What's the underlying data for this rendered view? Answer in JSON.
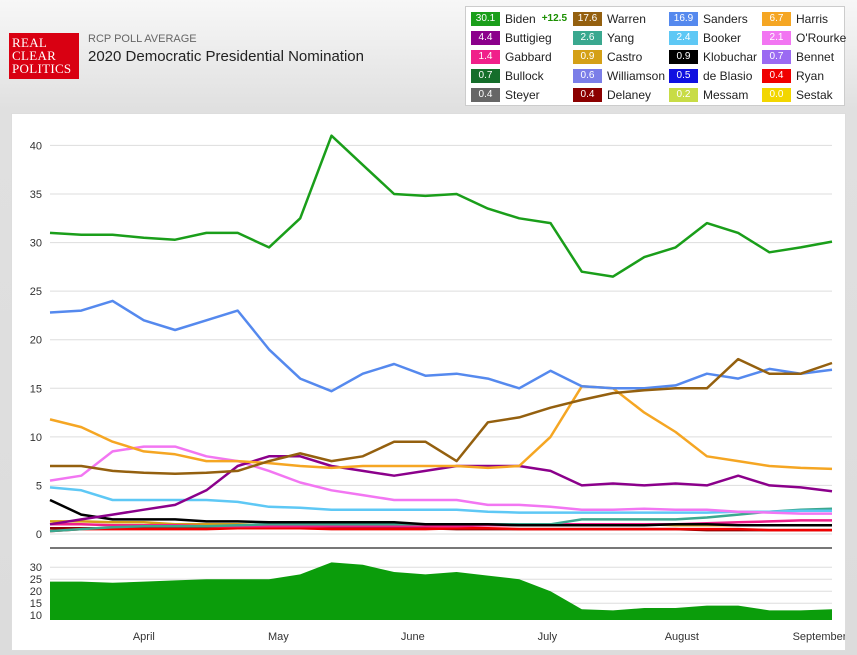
{
  "header": {
    "logo_lines": [
      "REAL",
      "CLEAR",
      "POLITICS"
    ],
    "supertitle": "RCP POLL AVERAGE",
    "title": "2020 Democratic Presidential Nomination"
  },
  "legend": [
    {
      "name": "Biden",
      "value": "30.1",
      "color": "#1a9e1a",
      "spread": "+12.5"
    },
    {
      "name": "Warren",
      "value": "17.6",
      "color": "#94600f"
    },
    {
      "name": "Sanders",
      "value": "16.9",
      "color": "#5589ee"
    },
    {
      "name": "Harris",
      "value": "6.7",
      "color": "#f5a623"
    },
    {
      "name": "Buttigieg",
      "value": "4.4",
      "color": "#8b008b"
    },
    {
      "name": "Yang",
      "value": "2.6",
      "color": "#3aa88f"
    },
    {
      "name": "Booker",
      "value": "2.4",
      "color": "#5ec8f5"
    },
    {
      "name": "O'Rourke",
      "value": "2.1",
      "color": "#f276f2"
    },
    {
      "name": "Gabbard",
      "value": "1.4",
      "color": "#f0208a"
    },
    {
      "name": "Castro",
      "value": "0.9",
      "color": "#d4a017"
    },
    {
      "name": "Klobuchar",
      "value": "0.9",
      "color": "#000000"
    },
    {
      "name": "Bennet",
      "value": "0.7",
      "color": "#9b6af2"
    },
    {
      "name": "Bullock",
      "value": "0.7",
      "color": "#156e2b"
    },
    {
      "name": "Williamson",
      "value": "0.6",
      "color": "#7b7ee8"
    },
    {
      "name": "de Blasio",
      "value": "0.5",
      "color": "#1010e0"
    },
    {
      "name": "Ryan",
      "value": "0.4",
      "color": "#f00000"
    },
    {
      "name": "Steyer",
      "value": "0.4",
      "color": "#666666"
    },
    {
      "name": "Delaney",
      "value": "0.4",
      "color": "#8b0000"
    },
    {
      "name": "Messam",
      "value": "0.2",
      "color": "#c8dc46"
    },
    {
      "name": "Sestak",
      "value": "0.0",
      "color": "#f2d600"
    }
  ],
  "chart_data": [
    {
      "type": "line",
      "x": [
        "Mar 15",
        "Mar 22",
        "Mar 29",
        "Apr 5",
        "Apr 12",
        "Apr 19",
        "Apr 26",
        "May 3",
        "May 10",
        "May 17",
        "May 24",
        "May 31",
        "Jun 7",
        "Jun 14",
        "Jun 21",
        "Jun 28",
        "Jul 5",
        "Jul 12",
        "Jul 19",
        "Jul 26",
        "Aug 2",
        "Aug 9",
        "Aug 16",
        "Aug 23",
        "Aug 30",
        "Sep 6"
      ],
      "xticks": [
        "April",
        "May",
        "June",
        "July",
        "August",
        "September"
      ],
      "xtick_positions": [
        3,
        7.3,
        11.6,
        15.9,
        20.2,
        24.6
      ],
      "ylim": [
        0,
        42
      ],
      "yticks": [
        0,
        5,
        10,
        15,
        20,
        25,
        30,
        35,
        40
      ],
      "grid": true,
      "series": [
        {
          "name": "Biden",
          "color": "#1a9e1a",
          "values": [
            31,
            30.8,
            30.8,
            30.5,
            30.3,
            31,
            31,
            29.5,
            32.5,
            41,
            38,
            35,
            34.8,
            35,
            33.5,
            32.5,
            32,
            27,
            26.5,
            28.5,
            29.5,
            32,
            31,
            29,
            29.5,
            30.1
          ]
        },
        {
          "name": "Warren",
          "color": "#94600f",
          "values": [
            7,
            7,
            6.5,
            6.3,
            6.2,
            6.3,
            6.5,
            7.5,
            8.3,
            7.5,
            8,
            9.5,
            9.5,
            7.5,
            11.5,
            12,
            13,
            13.8,
            14.5,
            14.8,
            15,
            15,
            18,
            16.5,
            16.5,
            17.6
          ]
        },
        {
          "name": "Sanders",
          "color": "#5589ee",
          "values": [
            22.8,
            23,
            24,
            22,
            21,
            22,
            23,
            19,
            16,
            14.7,
            16.5,
            17.5,
            16.3,
            16.5,
            16,
            15,
            16.8,
            15.2,
            15,
            15,
            15.3,
            16.5,
            16,
            17,
            16.5,
            16.9
          ]
        },
        {
          "name": "Harris",
          "color": "#f5a623",
          "values": [
            11.8,
            11,
            9.5,
            8.5,
            8.2,
            7.5,
            7.5,
            7.3,
            7,
            6.8,
            7,
            7,
            7,
            7,
            6.8,
            7,
            10,
            15.2,
            15,
            12.5,
            10.5,
            8,
            7.5,
            7,
            6.8,
            6.7
          ]
        },
        {
          "name": "Buttigieg",
          "color": "#8b008b",
          "values": [
            1,
            1.5,
            2,
            2.5,
            3,
            4.5,
            7,
            8,
            8,
            7,
            6.5,
            6,
            6.5,
            7,
            7,
            7,
            6.5,
            5,
            5.2,
            5,
            5.2,
            5,
            6,
            5,
            4.8,
            4.4
          ]
        },
        {
          "name": "O'Rourke",
          "color": "#f276f2",
          "values": [
            5.5,
            6,
            8.5,
            9,
            9,
            8,
            7.5,
            6.5,
            5.3,
            4.5,
            4,
            3.5,
            3.5,
            3.5,
            3,
            3,
            2.8,
            2.5,
            2.5,
            2.6,
            2.5,
            2.5,
            2.3,
            2.2,
            2.1,
            2.1
          ]
        },
        {
          "name": "Booker",
          "color": "#5ec8f5",
          "values": [
            4.8,
            4.5,
            3.5,
            3.5,
            3.5,
            3.5,
            3.3,
            2.8,
            2.7,
            2.5,
            2.5,
            2.5,
            2.5,
            2.5,
            2.3,
            2.2,
            2.2,
            2.2,
            2.2,
            2.2,
            2.2,
            2.2,
            2.3,
            2.3,
            2.4,
            2.4
          ]
        },
        {
          "name": "Klobuchar",
          "color": "#000000",
          "values": [
            3.5,
            2,
            1.5,
            1.5,
            1.5,
            1.3,
            1.3,
            1.2,
            1.2,
            1.2,
            1.2,
            1.2,
            1,
            1,
            1,
            0.9,
            0.9,
            0.9,
            0.9,
            0.9,
            1,
            1,
            0.9,
            0.9,
            0.9,
            0.9
          ]
        },
        {
          "name": "Yang",
          "color": "#3aa88f",
          "values": [
            0.3,
            0.5,
            0.7,
            0.8,
            0.8,
            0.8,
            0.9,
            1,
            1,
            1,
            1,
            1,
            1,
            1,
            1,
            1,
            1,
            1.5,
            1.5,
            1.5,
            1.5,
            1.7,
            2,
            2.3,
            2.5,
            2.6
          ]
        },
        {
          "name": "Gabbard",
          "color": "#f0208a",
          "values": [
            1,
            1,
            0.9,
            0.9,
            0.9,
            0.8,
            0.8,
            0.8,
            0.8,
            0.8,
            0.8,
            0.8,
            0.8,
            0.8,
            0.9,
            0.9,
            1,
            1,
            1,
            1,
            1,
            1.1,
            1.2,
            1.3,
            1.4,
            1.4
          ]
        },
        {
          "name": "Castro",
          "color": "#d4a017",
          "values": [
            1.3,
            1.3,
            1.2,
            1.2,
            1,
            1,
            1,
            0.9,
            0.9,
            0.9,
            0.9,
            0.9,
            0.9,
            0.9,
            0.9,
            0.9,
            1,
            1,
            1,
            1,
            0.9,
            0.9,
            0.9,
            0.9,
            0.9,
            0.9
          ]
        },
        {
          "name": "Ryan",
          "color": "#f00000",
          "values": [
            0.3,
            0.5,
            0.5,
            0.5,
            0.5,
            0.5,
            0.6,
            0.6,
            0.6,
            0.5,
            0.5,
            0.5,
            0.5,
            0.6,
            0.6,
            0.5,
            0.5,
            0.5,
            0.5,
            0.5,
            0.5,
            0.5,
            0.5,
            0.4,
            0.4,
            0.4
          ]
        },
        {
          "name": "Delaney",
          "color": "#8b0000",
          "values": [
            0.6,
            0.6,
            0.6,
            0.6,
            0.6,
            0.6,
            0.6,
            0.6,
            0.6,
            0.6,
            0.6,
            0.6,
            0.6,
            0.5,
            0.5,
            0.5,
            0.5,
            0.5,
            0.5,
            0.5,
            0.5,
            0.4,
            0.4,
            0.4,
            0.4,
            0.4
          ]
        }
      ]
    },
    {
      "type": "area",
      "name": "Biden spread",
      "x": [
        "Mar 15",
        "Mar 22",
        "Mar 29",
        "Apr 5",
        "Apr 12",
        "Apr 19",
        "Apr 26",
        "May 3",
        "May 10",
        "May 17",
        "May 24",
        "May 31",
        "Jun 7",
        "Jun 14",
        "Jun 21",
        "Jun 28",
        "Jul 5",
        "Jul 12",
        "Jul 19",
        "Jul 26",
        "Aug 2",
        "Aug 9",
        "Aug 16",
        "Aug 23",
        "Aug 30",
        "Sep 6"
      ],
      "color": "#0b9d0b",
      "values": [
        24,
        24,
        23.5,
        24,
        24.5,
        25,
        25,
        25,
        27,
        32,
        31,
        28,
        27,
        28,
        26.5,
        25,
        20,
        12.5,
        12,
        13,
        13,
        14,
        14,
        12,
        12,
        12.5
      ],
      "ylim": [
        8,
        33
      ],
      "yticks": [
        10,
        15,
        20,
        25,
        30
      ],
      "grid": true
    }
  ]
}
